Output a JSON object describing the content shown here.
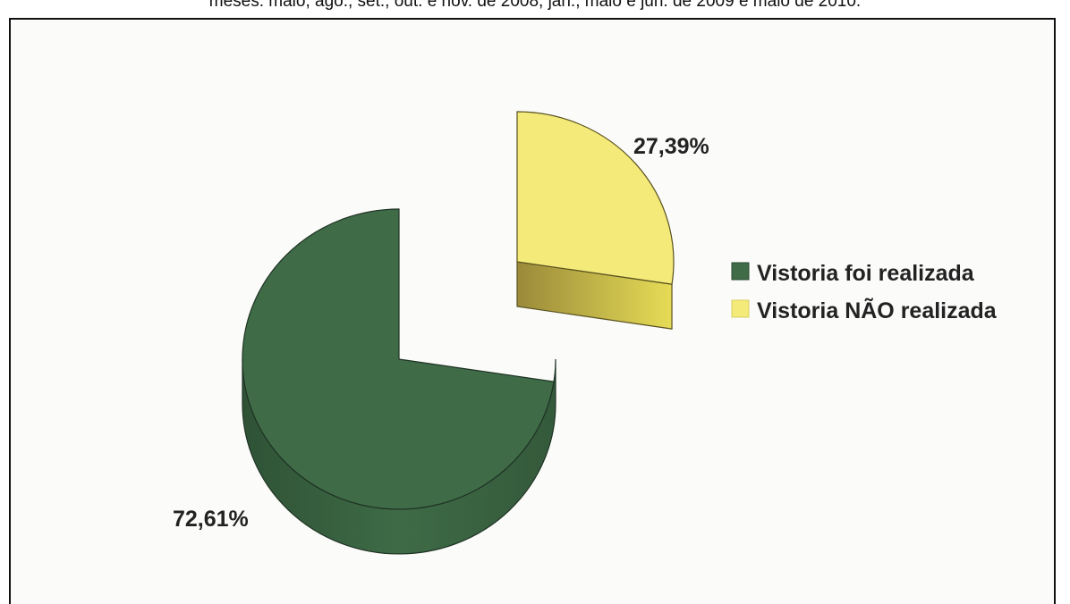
{
  "caption": "meses: maio, ago., set., out. e nov. de 2008, jan., maio e jun. de 2009 e maio de 2010.",
  "chart_data": {
    "type": "pie",
    "title": "",
    "series": [
      {
        "name": "Vistoria foi realizada",
        "value": 72.61,
        "label": "72,61%",
        "color": "#3f6b47"
      },
      {
        "name": "Vistoria NÃO realizada",
        "value": 27.39,
        "label": "27,39%",
        "color": "#f3ea7a"
      }
    ],
    "style": "3d-exploded",
    "legend_position": "right"
  }
}
